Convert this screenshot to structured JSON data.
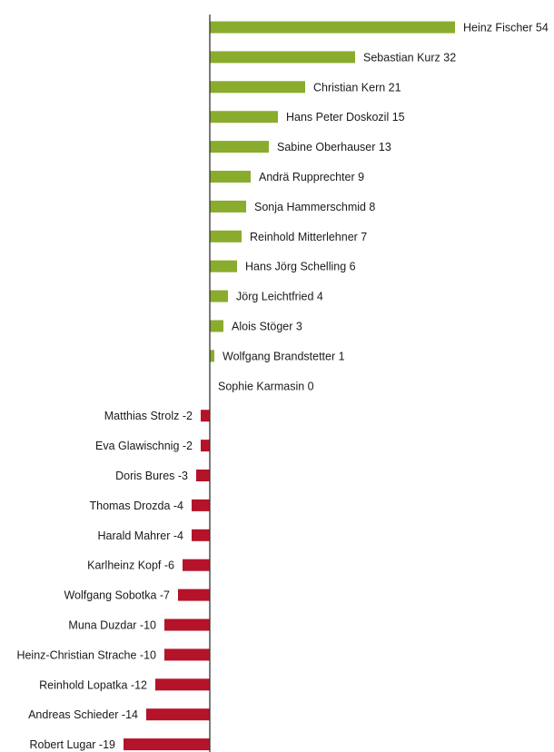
{
  "chart_data": {
    "type": "bar",
    "orientation": "horizontal",
    "title": "",
    "xlabel": "",
    "ylabel": "",
    "xlim": [
      -19,
      54
    ],
    "grid": false,
    "legend": "none",
    "colors": {
      "positive": "#8aac2c",
      "negative": "#b5132a",
      "axis": "#333333"
    },
    "categories": [
      "Heinz Fischer",
      "Sebastian Kurz",
      "Christian Kern",
      "Hans Peter Doskozil",
      "Sabine Oberhauser",
      "Andrä Rupprechter",
      "Sonja Hammerschmid",
      "Reinhold Mitterlehner",
      "Hans Jörg Schelling",
      "Jörg Leichtfried",
      "Alois Stöger",
      "Wolfgang Brandstetter",
      "Sophie Karmasin",
      "Matthias Strolz",
      "Eva Glawischnig",
      "Doris Bures",
      "Thomas Drozda",
      "Harald Mahrer",
      "Karlheinz Kopf",
      "Wolfgang Sobotka",
      "Muna Duzdar",
      "Heinz-Christian Strache",
      "Reinhold Lopatka",
      "Andreas Schieder",
      "Robert Lugar"
    ],
    "values": [
      54,
      32,
      21,
      15,
      13,
      9,
      8,
      7,
      6,
      4,
      3,
      1,
      0,
      -2,
      -2,
      -3,
      -4,
      -4,
      -6,
      -7,
      -10,
      -10,
      -12,
      -14,
      -19
    ],
    "labels": [
      "Heinz Fischer 54",
      "Sebastian Kurz 32",
      "Christian Kern 21",
      "Hans Peter Doskozil 15",
      "Sabine Oberhauser 13",
      "Andrä Rupprechter 9",
      "Sonja Hammerschmid 8",
      "Reinhold Mitterlehner 7",
      "Hans Jörg Schelling 6",
      "Jörg Leichtfried 4",
      "Alois Stöger 3",
      "Wolfgang Brandstetter 1",
      "Sophie Karmasin 0",
      "Matthias Strolz  -2",
      "Eva Glawischnig -2",
      "Doris Bures -3",
      "Thomas Drozda -4",
      "Harald Mahrer -4",
      "Karlheinz Kopf -6",
      "Wolfgang Sobotka -7",
      "Muna Duzdar -10",
      "Heinz-Christian Strache -10",
      "Reinhold Lopatka -12",
      "Andreas Schieder -14",
      "Robert Lugar -19"
    ]
  }
}
